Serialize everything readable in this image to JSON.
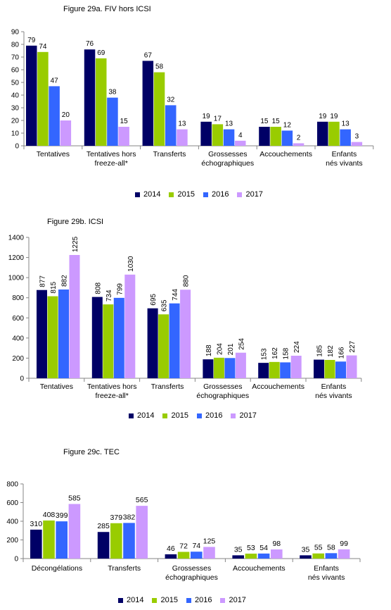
{
  "colors": {
    "2014": "#000066",
    "2015": "#99cc00",
    "2016": "#3366ff",
    "2017": "#cc99ff"
  },
  "chart_data": [
    {
      "type": "bar",
      "title": "Figure 29a. FIV hors ICSI",
      "categories": [
        "Tentatives",
        "Tentatives hors freeze-all*",
        "Transferts",
        "Grossesses échographiques",
        "Accouchements",
        "Enfants nés vivants"
      ],
      "ylim": [
        0,
        90
      ],
      "yticks": [
        0,
        10,
        20,
        30,
        40,
        50,
        60,
        70,
        80,
        90
      ],
      "grid": false,
      "legend_position": "bottom",
      "series": [
        {
          "name": "2014",
          "values": [
            79,
            76,
            67,
            19,
            15,
            19
          ]
        },
        {
          "name": "2015",
          "values": [
            74,
            69,
            58,
            17,
            15,
            19
          ]
        },
        {
          "name": "2016",
          "values": [
            47,
            38,
            32,
            13,
            12,
            13
          ]
        },
        {
          "name": "2017",
          "values": [
            20,
            15,
            13,
            4,
            2,
            3
          ]
        }
      ]
    },
    {
      "type": "bar",
      "title": "Figure 29b. ICSI",
      "categories": [
        "Tentatives",
        "Tentatives hors freeze-all*",
        "Transferts",
        "Grossesses échographiques",
        "Accouchements",
        "Enfants nés vivants"
      ],
      "ylim": [
        0,
        1400
      ],
      "yticks": [
        0,
        200,
        400,
        600,
        800,
        1000,
        1200,
        1400
      ],
      "grid": false,
      "legend_position": "bottom",
      "series": [
        {
          "name": "2014",
          "values": [
            877,
            808,
            695,
            188,
            153,
            185
          ]
        },
        {
          "name": "2015",
          "values": [
            815,
            734,
            635,
            204,
            162,
            182
          ]
        },
        {
          "name": "2016",
          "values": [
            882,
            799,
            744,
            201,
            158,
            166
          ]
        },
        {
          "name": "2017",
          "values": [
            1225,
            1030,
            880,
            254,
            224,
            227
          ]
        }
      ]
    },
    {
      "type": "bar",
      "title": "Figure 29c. TEC",
      "categories": [
        "Décongélations",
        "Transferts",
        "Grossesses échographiques",
        "Accouchements",
        "Enfants nés vivants"
      ],
      "ylim": [
        0,
        800
      ],
      "yticks": [
        0,
        200,
        400,
        600,
        800
      ],
      "grid": false,
      "legend_position": "bottom",
      "series": [
        {
          "name": "2014",
          "values": [
            310,
            285,
            46,
            35,
            35
          ]
        },
        {
          "name": "2015",
          "values": [
            408,
            379,
            72,
            53,
            55
          ]
        },
        {
          "name": "2016",
          "values": [
            399,
            382,
            74,
            54,
            58
          ]
        },
        {
          "name": "2017",
          "values": [
            585,
            565,
            125,
            98,
            99
          ]
        }
      ]
    }
  ]
}
